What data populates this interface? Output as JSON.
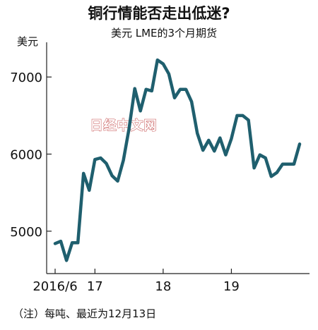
{
  "header": {
    "title": "铜行情能否走出低迷?",
    "subtitle": "美元 LME的3个月期货"
  },
  "watermark": "日经中文网",
  "note": "（注）每吨、最近为12月13日",
  "colors": {
    "line": "#1f5f6e",
    "axis": "#222222",
    "background": "#ffffff"
  },
  "chart_data": {
    "type": "line",
    "title": "铜行情能否走出低迷?",
    "subtitle": "美元 LME的3个月期货",
    "ylabel": "美元",
    "xlabel": "",
    "ylim": [
      4450,
      7450
    ],
    "y_ticks": [
      5000,
      6000,
      7000
    ],
    "x_ticks": [
      {
        "label": "2016/6",
        "index": 0
      },
      {
        "label": "17",
        "index": 7
      },
      {
        "label": "18",
        "index": 19
      },
      {
        "label": "19",
        "index": 31
      }
    ],
    "grid": false,
    "legend": "none",
    "series": [
      {
        "values": [
          4840,
          4870,
          4620,
          4850,
          4850,
          5750,
          5530,
          5930,
          5950,
          5880,
          5720,
          5650,
          5920,
          6330,
          6850,
          6560,
          6840,
          6820,
          7220,
          7170,
          7040,
          6730,
          6840,
          6840,
          6680,
          6270,
          6050,
          6180,
          6040,
          6210,
          5990,
          6200,
          6500,
          6500,
          6440,
          5820,
          5990,
          5950,
          5710,
          5760,
          5870,
          5870,
          5870,
          6130
        ]
      }
    ]
  }
}
